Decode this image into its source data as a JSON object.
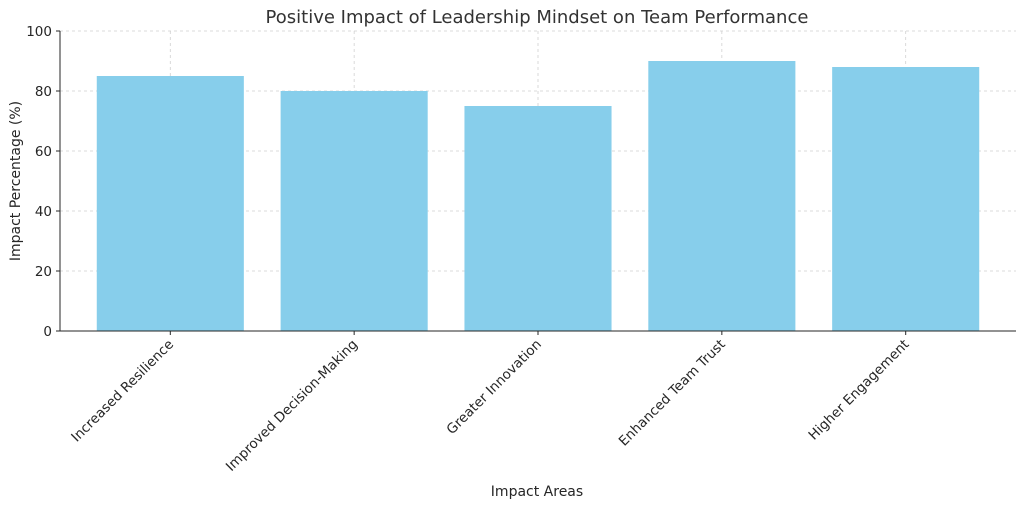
{
  "chart_data": {
    "type": "bar",
    "title": "Positive Impact of Leadership Mindset on Team Performance",
    "xlabel": "Impact Areas",
    "ylabel": "Impact Percentage (%)",
    "categories": [
      "Increased Resilience",
      "Improved Decision-Making",
      "Greater Innovation",
      "Enhanced Team Trust",
      "Higher Engagement"
    ],
    "values": [
      85,
      80,
      75,
      90,
      88
    ],
    "ylim": [
      0,
      100
    ],
    "yticks": [
      0,
      20,
      40,
      60,
      80,
      100
    ],
    "grid": true,
    "bar_color": "#87ceeb"
  }
}
